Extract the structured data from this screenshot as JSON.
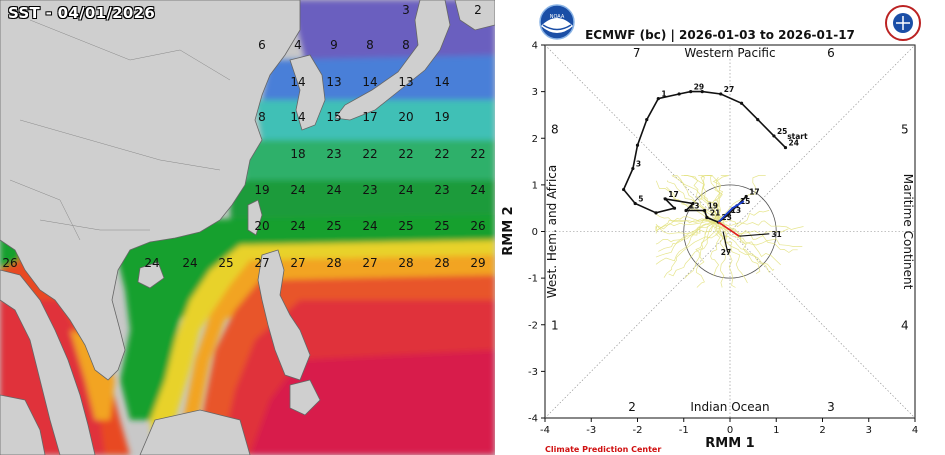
{
  "sst_map": {
    "title": "SST - 04/01/2026",
    "grid_labels": [
      {
        "row": 0,
        "values": [
          null,
          null,
          null,
          null,
          null,
          null,
          null,
          null,
          null,
          null,
          null,
          "3",
          null,
          "2"
        ]
      },
      {
        "row": 1,
        "values": [
          null,
          null,
          null,
          null,
          null,
          null,
          null,
          "6",
          "4",
          "9",
          "8",
          "8"
        ]
      },
      {
        "row": 2,
        "values": [
          null,
          null,
          null,
          null,
          null,
          null,
          null,
          null,
          "14",
          "13",
          "14",
          "13",
          "14"
        ]
      },
      {
        "row": 3,
        "values": [
          null,
          null,
          null,
          null,
          null,
          null,
          null,
          "8",
          "14",
          "15",
          "17",
          "20",
          "19"
        ]
      },
      {
        "row": 4,
        "values": [
          null,
          null,
          null,
          null,
          null,
          null,
          null,
          null,
          "18",
          "23",
          "22",
          "22",
          "22",
          "22"
        ]
      },
      {
        "row": 5,
        "values": [
          null,
          null,
          null,
          null,
          null,
          null,
          null,
          "19",
          "24",
          "24",
          "23",
          "24",
          "23",
          "24"
        ]
      },
      {
        "row": 6,
        "values": [
          null,
          null,
          null,
          null,
          null,
          null,
          null,
          "20",
          "24",
          "25",
          "24",
          "25",
          "25",
          "26"
        ]
      },
      {
        "row": 7,
        "values": [
          "26",
          null,
          null,
          null,
          "24",
          "24",
          "25",
          "27",
          "27",
          "28",
          "27",
          "28",
          "28",
          "29"
        ]
      }
    ]
  },
  "mjo": {
    "title": "ECMWF (bc) | 2026-01-03 to 2026-01-17",
    "x_label": "RMM 1",
    "y_label": "RMM 2",
    "top_region": "Western Pacific",
    "bottom_region": "Indian Ocean",
    "left_region": "West. Hem. and Africa",
    "right_region": "Maritime Continent",
    "phases": [
      "1",
      "2",
      "3",
      "4",
      "5",
      "6",
      "7",
      "8"
    ],
    "credit": "Climate Prediction Center",
    "start_label": "start",
    "ticks": [
      "-4",
      "-3",
      "-2",
      "-1",
      "0",
      "1",
      "2",
      "3",
      "4"
    ]
  },
  "chart_data": {
    "type": "scatter",
    "title": "ECMWF (bc) | 2026-01-03 to 2026-01-17",
    "xlabel": "RMM 1",
    "ylabel": "RMM 2",
    "xlim": [
      -4,
      4
    ],
    "ylim": [
      -4,
      4
    ],
    "grid": false,
    "observed": [
      {
        "x": 1.2,
        "y": 1.8,
        "label": "24"
      },
      {
        "x": 0.95,
        "y": 2.05,
        "label": "25"
      },
      {
        "x": 0.6,
        "y": 2.4,
        "label": null
      },
      {
        "x": 0.25,
        "y": 2.75,
        "label": null
      },
      {
        "x": -0.2,
        "y": 2.95,
        "label": "27"
      },
      {
        "x": -0.6,
        "y": 3.0,
        "label": null
      },
      {
        "x": -0.85,
        "y": 3.0,
        "label": "29"
      },
      {
        "x": -1.1,
        "y": 2.95,
        "label": null
      },
      {
        "x": -1.55,
        "y": 2.85,
        "label": "1"
      },
      {
        "x": -1.8,
        "y": 2.4,
        "label": null
      },
      {
        "x": -2.0,
        "y": 1.85,
        "label": null
      },
      {
        "x": -2.1,
        "y": 1.35,
        "label": "3"
      },
      {
        "x": -2.3,
        "y": 0.9,
        "label": null
      },
      {
        "x": -2.05,
        "y": 0.6,
        "label": "5"
      },
      {
        "x": -1.6,
        "y": 0.4,
        "label": null
      },
      {
        "x": -1.2,
        "y": 0.5,
        "label": null
      },
      {
        "x": -1.4,
        "y": 0.7,
        "label": "17"
      },
      {
        "x": -0.8,
        "y": 0.6,
        "label": null
      },
      {
        "x": -0.95,
        "y": 0.45,
        "label": "13"
      },
      {
        "x": -0.55,
        "y": 0.45,
        "label": "19"
      },
      {
        "x": -0.5,
        "y": 0.3,
        "label": "21"
      },
      {
        "x": -0.25,
        "y": 0.2,
        "label": "23"
      },
      {
        "x": -0.05,
        "y": 0.35,
        "label": "13"
      },
      {
        "x": 0.15,
        "y": 0.55,
        "label": "15"
      },
      {
        "x": 0.35,
        "y": 0.75,
        "label": "17"
      }
    ],
    "forecast_ensemble_mean": [
      {
        "x": -0.25,
        "y": 0.2
      },
      {
        "x": 0.05,
        "y": 0.5
      },
      {
        "x": 0.3,
        "y": 0.65
      }
    ],
    "ensemble_members_note": "yellow",
    "circle_radius": 1
  }
}
